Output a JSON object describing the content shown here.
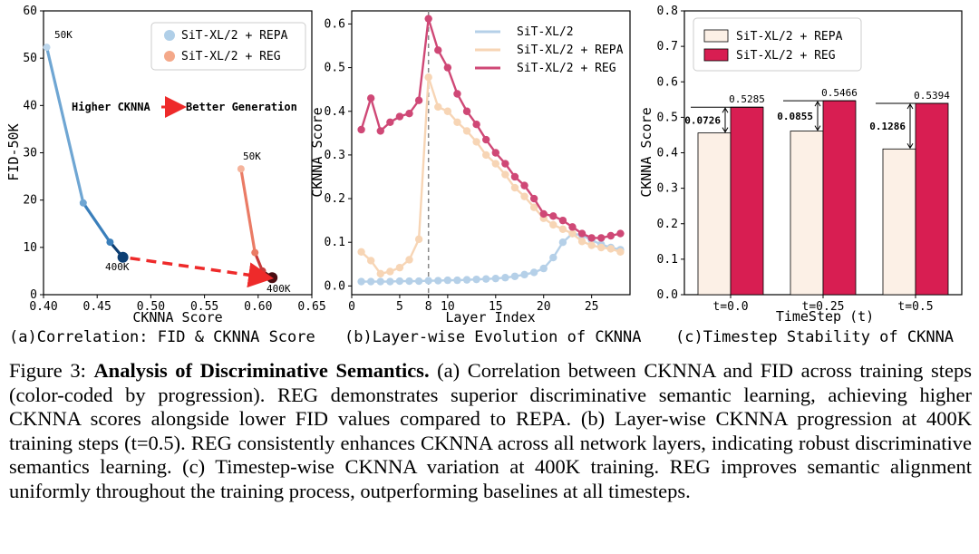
{
  "panels": {
    "a": {
      "caption": "(a)Correlation: FID & CKNNA Score",
      "annotation_left": "Higher CKNNA",
      "annotation_right": "Better Generation",
      "label_repa_50k": "50K",
      "label_reg_50k": "50K",
      "label_repa_400k": "400K",
      "label_reg_400k": "400K"
    },
    "b": {
      "caption": "(b)Layer-wise Evolution of CKNNA"
    },
    "c": {
      "caption": "(c)Timestep Stability of CKNNA"
    }
  },
  "chart_data": [
    {
      "type": "line",
      "xlabel": "CKNNA Score",
      "ylabel": "FID-50K",
      "xlim": [
        0.4,
        0.65
      ],
      "ylim": [
        0,
        60
      ],
      "xticks": [
        "0.40",
        "0.45",
        "0.50",
        "0.55",
        "0.60",
        "0.65"
      ],
      "yticks": [
        "0",
        "10",
        "20",
        "30",
        "40",
        "50",
        "60"
      ],
      "legend_position": "top-right",
      "series": [
        {
          "name": "SiT-XL/2 + REPA",
          "color": "#b0cfe8",
          "x": [
            0.403,
            0.437,
            0.462,
            0.474
          ],
          "y": [
            52.3,
            19.4,
            11.1,
            7.9
          ],
          "colors": [
            "#bcd6ec",
            "#6fa6d3",
            "#3a7fbb",
            "#0d3f73"
          ]
        },
        {
          "name": "SiT-XL/2 + REG",
          "color": "#f4a889",
          "x": [
            0.584,
            0.597,
            0.604,
            0.613
          ],
          "y": [
            26.6,
            8.9,
            5.0,
            3.6
          ],
          "colors": [
            "#f5b39b",
            "#ea7b65",
            "#c63a3a",
            "#4a0d12"
          ]
        }
      ]
    },
    {
      "type": "line",
      "xlabel": "Layer Index",
      "ylabel": "CKNNA Score",
      "xlim": [
        0,
        29
      ],
      "ylim": [
        -0.02,
        0.63
      ],
      "xticks": [
        "0",
        "5",
        "8",
        "10",
        "15",
        "20",
        "25"
      ],
      "yticks": [
        "0.0",
        "0.1",
        "0.2",
        "0.3",
        "0.4",
        "0.5",
        "0.6"
      ],
      "vline_x": 8,
      "legend_position": "top-right",
      "series": [
        {
          "name": "SiT-XL/2",
          "color": "#b5d0e8",
          "x": [
            1,
            2,
            3,
            4,
            5,
            6,
            7,
            8,
            9,
            10,
            11,
            12,
            13,
            14,
            15,
            16,
            17,
            18,
            19,
            20,
            21,
            22,
            23,
            24,
            25,
            26,
            27,
            28
          ],
          "y": [
            0.01,
            0.01,
            0.01,
            0.01,
            0.011,
            0.011,
            0.011,
            0.012,
            0.012,
            0.013,
            0.013,
            0.014,
            0.015,
            0.016,
            0.017,
            0.019,
            0.022,
            0.026,
            0.031,
            0.04,
            0.065,
            0.1,
            0.12,
            0.116,
            0.105,
            0.095,
            0.088,
            0.083
          ]
        },
        {
          "name": "SiT-XL/2 + REPA",
          "color": "#f7d5b5",
          "x": [
            1,
            2,
            3,
            4,
            5,
            6,
            7,
            8,
            9,
            10,
            11,
            12,
            13,
            14,
            15,
            16,
            17,
            18,
            19,
            20,
            21,
            22,
            23,
            24,
            25,
            26,
            27,
            28
          ],
          "y": [
            0.078,
            0.058,
            0.028,
            0.033,
            0.042,
            0.06,
            0.107,
            0.478,
            0.41,
            0.4,
            0.375,
            0.355,
            0.33,
            0.3,
            0.28,
            0.255,
            0.225,
            0.205,
            0.18,
            0.155,
            0.14,
            0.13,
            0.12,
            0.102,
            0.093,
            0.088,
            0.085,
            0.078
          ]
        },
        {
          "name": "SiT-XL/2 + REG",
          "color": "#cf4876",
          "x": [
            1,
            2,
            3,
            4,
            5,
            6,
            7,
            8,
            9,
            10,
            11,
            12,
            13,
            14,
            15,
            16,
            17,
            18,
            19,
            20,
            21,
            22,
            23,
            24,
            25,
            26,
            27,
            28
          ],
          "y": [
            0.358,
            0.43,
            0.355,
            0.375,
            0.388,
            0.395,
            0.425,
            0.612,
            0.54,
            0.5,
            0.44,
            0.4,
            0.37,
            0.335,
            0.305,
            0.28,
            0.25,
            0.23,
            0.2,
            0.165,
            0.16,
            0.15,
            0.135,
            0.12,
            0.11,
            0.11,
            0.115,
            0.12
          ]
        }
      ]
    },
    {
      "type": "bar",
      "xlabel": "TimeStep (t)",
      "ylabel": "CKNNA Score",
      "ylim": [
        0,
        0.8
      ],
      "yticks": [
        "0.0",
        "0.1",
        "0.2",
        "0.3",
        "0.4",
        "0.5",
        "0.6",
        "0.7",
        "0.8"
      ],
      "categories": [
        "t=0.0",
        "t=0.25",
        "t=0.5"
      ],
      "legend_position": "top-left",
      "series": [
        {
          "name": "SiT-XL/2 + REPA",
          "color": "#fcf0e6",
          "values": [
            0.4559,
            0.4611,
            0.4108
          ]
        },
        {
          "name": "SiT-XL/2 + REG",
          "color": "#d81e52",
          "values": [
            0.5285,
            0.5466,
            0.5394
          ],
          "data_labels": [
            "0.5285",
            "0.5466",
            "0.5394"
          ]
        }
      ],
      "differences": [
        "0.0726",
        "0.0855",
        "0.1286"
      ]
    }
  ],
  "caption": {
    "prefix": "Figure 3: ",
    "title": "Analysis of Discriminative Semantics.",
    "body": " (a) Correlation between CKNNA and FID across training steps (color-coded by progression). REG demonstrates superior discriminative semantic learning, achieving higher CKNNA scores alongside lower FID values compared to REPA. (b) Layer-wise CKNNA progression at 400K training steps (t=0.5). REG consistently enhances CKNNA across all network layers, indicating robust discriminative semantics learning. (c) Timestep-wise CKNNA variation at 400K training. REG improves semantic alignment uniformly throughout the training process, outperforming baselines at all timesteps."
  }
}
